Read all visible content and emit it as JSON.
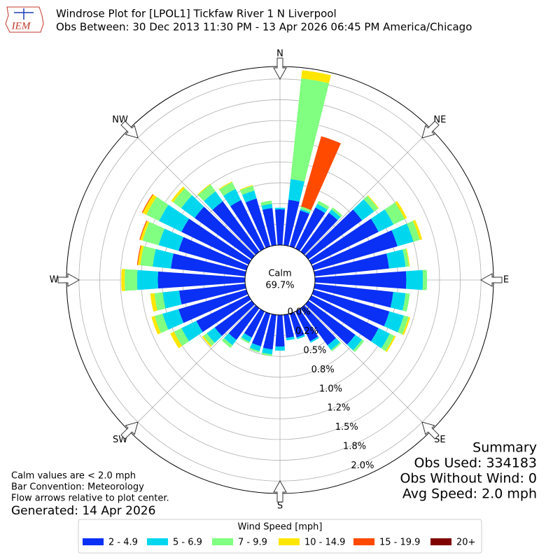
{
  "chart_data": {
    "type": "windrose",
    "title": "Windrose Plot for [LPOL1] Tickfaw River 1 N Liverpool",
    "subtitle": "Obs Between: 30 Dec 2013 11:30 PM - 13 Apr 2026 06:45 PM America/Chicago",
    "logo": "IEM",
    "x": [
      0,
      10,
      20,
      30,
      40,
      50,
      60,
      70,
      80,
      90,
      100,
      110,
      120,
      130,
      140,
      150,
      160,
      170,
      180,
      190,
      200,
      210,
      220,
      230,
      240,
      250,
      260,
      270,
      280,
      290,
      300,
      310,
      320,
      330,
      340,
      350
    ],
    "xticks": [
      {
        "value": 0,
        "label": "N"
      },
      {
        "value": 45,
        "label": "NE"
      },
      {
        "value": 90,
        "label": "E"
      },
      {
        "value": 135,
        "label": "SE"
      },
      {
        "value": 180,
        "label": "S"
      },
      {
        "value": 225,
        "label": "SW"
      },
      {
        "value": 270,
        "label": "W"
      },
      {
        "value": 315,
        "label": "NW"
      }
    ],
    "rlim": [
      0,
      2.15
    ],
    "rticks": [
      {
        "value": 0,
        "label": "0.0%"
      },
      {
        "value": 0.25,
        "label": "0.2%"
      },
      {
        "value": 0.5,
        "label": "0.5%"
      },
      {
        "value": 0.75,
        "label": "0.8%"
      },
      {
        "value": 1.0,
        "label": "1.0%"
      },
      {
        "value": 1.25,
        "label": "1.2%"
      },
      {
        "value": 1.5,
        "label": "1.5%"
      },
      {
        "value": 1.75,
        "label": "1.8%"
      },
      {
        "value": 2.0,
        "label": "2.0%"
      }
    ],
    "grid": true,
    "calm": {
      "label": "Calm",
      "value": 69.7,
      "value_label": "69.7%"
    },
    "legend_title": "Wind Speed [mph]",
    "legend": "bottom",
    "series": [
      {
        "name": "2 - 4.9",
        "color": "#0a2ff5",
        "values": [
          0.43,
          0.55,
          0.45,
          0.55,
          0.58,
          0.8,
          0.9,
          1.05,
          0.9,
          1.1,
          0.95,
          0.95,
          0.9,
          0.7,
          0.55,
          0.4,
          0.3,
          0.28,
          0.38,
          0.42,
          0.41,
          0.35,
          0.47,
          0.55,
          0.7,
          0.85,
          0.8,
          1.05,
          0.9,
          0.85,
          0.9,
          0.85,
          0.75,
          0.65,
          0.6,
          0.45
        ]
      },
      {
        "name": "5 - 6.9",
        "color": "#00d7ef",
        "values": [
          0.02,
          0.25,
          0.02,
          0.05,
          0.05,
          0.18,
          0.2,
          0.2,
          0.2,
          0.2,
          0.15,
          0.18,
          0.15,
          0.1,
          0.07,
          0.02,
          0.02,
          0.03,
          0.05,
          0.06,
          0.06,
          0.06,
          0.08,
          0.12,
          0.2,
          0.2,
          0.2,
          0.25,
          0.22,
          0.25,
          0.3,
          0.2,
          0.15,
          0.15,
          0.1,
          0.05
        ]
      },
      {
        "name": "7 - 9.9",
        "color": "#80ff80",
        "values": [
          0,
          1.22,
          0.03,
          0.04,
          0.03,
          0.06,
          0.15,
          0.08,
          0.04,
          0.05,
          0.05,
          0.06,
          0.06,
          0.03,
          0.02,
          0,
          0,
          0,
          0,
          0.02,
          0.02,
          0.02,
          0.04,
          0.05,
          0.1,
          0.1,
          0.1,
          0.15,
          0.15,
          0.2,
          0.17,
          0.12,
          0.1,
          0.09,
          0.06,
          0.04
        ]
      },
      {
        "name": "10 - 14.9",
        "color": "#ffe600",
        "values": [
          0,
          0.1,
          0,
          0,
          0,
          0.01,
          0.03,
          0.03,
          0.01,
          0,
          0,
          0.02,
          0.02,
          0,
          0,
          0,
          0,
          0,
          0,
          0,
          0,
          0,
          0,
          0.02,
          0.05,
          0.04,
          0.05,
          0.04,
          0.03,
          0.03,
          0.05,
          0.03,
          0.01,
          0.01,
          0.01,
          0
        ]
      },
      {
        "name": "15 - 19.9",
        "color": "#ff4a00",
        "values": [
          0,
          0,
          0.88,
          0,
          0,
          0,
          0,
          0,
          0,
          0,
          0,
          0,
          0,
          0,
          0,
          0,
          0,
          0,
          0,
          0,
          0,
          0,
          0,
          0,
          0,
          0,
          0,
          0,
          0.01,
          0.01,
          0.01,
          0,
          0,
          0,
          0,
          0
        ]
      },
      {
        "name": "20+",
        "color": "#800000",
        "values": [
          0,
          0,
          0,
          0,
          0,
          0,
          0,
          0,
          0,
          0,
          0,
          0,
          0,
          0,
          0,
          0,
          0,
          0,
          0,
          0,
          0,
          0,
          0,
          0,
          0,
          0,
          0,
          0,
          0,
          0,
          0,
          0,
          0,
          0,
          0,
          0
        ]
      }
    ],
    "notes": [
      "Calm values are < 2.0 mph",
      "Bar Convention: Meteorology",
      "Flow arrows relative to plot center."
    ],
    "generated": "Generated: 14 Apr 2026",
    "summary": [
      "Summary",
      "Obs Used: 334183",
      "Obs Without Wind: 0",
      "Avg Speed: 2.0 mph"
    ]
  }
}
